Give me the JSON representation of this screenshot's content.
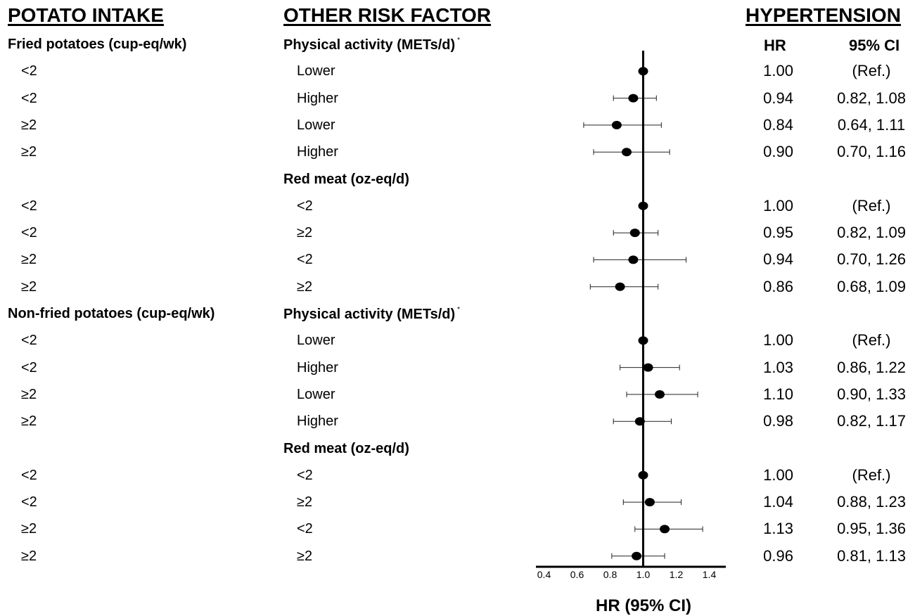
{
  "headers": {
    "potato_intake": "POTATO INTAKE",
    "other_risk_factor": "OTHER RISK FACTOR",
    "outcome": "HYPERTENSION",
    "hr": "HR",
    "ci": "95% CI",
    "asterisk": "*"
  },
  "xaxis_label": "HR (95% CI)",
  "chart_data": {
    "type": "forest",
    "xlabel": "HR (95% CI)",
    "xlim": [
      0.4,
      1.5
    ],
    "xticks": [
      "0.4",
      "0.6",
      "0.8",
      "1.0",
      "1.2",
      "1.4"
    ],
    "reference_line": 1.0,
    "rows": [
      {
        "kind": "section",
        "potato": "Fried potatoes (cup-eq/wk)",
        "factor": "Physical activity (METs/d)",
        "asterisk": true
      },
      {
        "kind": "data",
        "potato": "<2",
        "factor": "Lower",
        "hr": 1.0,
        "lo": 1.0,
        "hi": 1.0,
        "hr_text": "1.00",
        "ci_text": "(Ref.)"
      },
      {
        "kind": "data",
        "potato": "<2",
        "factor": "Higher",
        "hr": 0.94,
        "lo": 0.82,
        "hi": 1.08,
        "hr_text": "0.94",
        "ci_text": "0.82, 1.08"
      },
      {
        "kind": "data",
        "potato": "≥2",
        "factor": "Lower",
        "hr": 0.84,
        "lo": 0.64,
        "hi": 1.11,
        "hr_text": "0.84",
        "ci_text": "0.64, 1.11"
      },
      {
        "kind": "data",
        "potato": "≥2",
        "factor": "Higher",
        "hr": 0.9,
        "lo": 0.7,
        "hi": 1.16,
        "hr_text": "0.90",
        "ci_text": "0.70, 1.16"
      },
      {
        "kind": "section",
        "potato": "",
        "factor": "Red meat (oz-eq/d)",
        "asterisk": false
      },
      {
        "kind": "data",
        "potato": "<2",
        "factor": "<2",
        "hr": 1.0,
        "lo": 1.0,
        "hi": 1.0,
        "hr_text": "1.00",
        "ci_text": "(Ref.)"
      },
      {
        "kind": "data",
        "potato": "<2",
        "factor": "≥2",
        "hr": 0.95,
        "lo": 0.82,
        "hi": 1.09,
        "hr_text": "0.95",
        "ci_text": "0.82, 1.09"
      },
      {
        "kind": "data",
        "potato": "≥2",
        "factor": "<2",
        "hr": 0.94,
        "lo": 0.7,
        "hi": 1.26,
        "hr_text": "0.94",
        "ci_text": "0.70, 1.26"
      },
      {
        "kind": "data",
        "potato": "≥2",
        "factor": "≥2",
        "hr": 0.86,
        "lo": 0.68,
        "hi": 1.09,
        "hr_text": "0.86",
        "ci_text": "0.68, 1.09"
      },
      {
        "kind": "section",
        "potato": "Non-fried potatoes (cup-eq/wk)",
        "factor": "Physical activity (METs/d)",
        "asterisk": true
      },
      {
        "kind": "data",
        "potato": "<2",
        "factor": "Lower",
        "hr": 1.0,
        "lo": 1.0,
        "hi": 1.0,
        "hr_text": "1.00",
        "ci_text": "(Ref.)"
      },
      {
        "kind": "data",
        "potato": "<2",
        "factor": "Higher",
        "hr": 1.03,
        "lo": 0.86,
        "hi": 1.22,
        "hr_text": "1.03",
        "ci_text": "0.86, 1.22"
      },
      {
        "kind": "data",
        "potato": "≥2",
        "factor": "Lower",
        "hr": 1.1,
        "lo": 0.9,
        "hi": 1.33,
        "hr_text": "1.10",
        "ci_text": "0.90, 1.33"
      },
      {
        "kind": "data",
        "potato": "≥2",
        "factor": "Higher",
        "hr": 0.98,
        "lo": 0.82,
        "hi": 1.17,
        "hr_text": "0.98",
        "ci_text": "0.82, 1.17"
      },
      {
        "kind": "section",
        "potato": "",
        "factor": "Red meat (oz-eq/d)",
        "asterisk": false
      },
      {
        "kind": "data",
        "potato": "<2",
        "factor": "<2",
        "hr": 1.0,
        "lo": 1.0,
        "hi": 1.0,
        "hr_text": "1.00",
        "ci_text": "(Ref.)"
      },
      {
        "kind": "data",
        "potato": "<2",
        "factor": "≥2",
        "hr": 1.04,
        "lo": 0.88,
        "hi": 1.23,
        "hr_text": "1.04",
        "ci_text": "0.88, 1.23"
      },
      {
        "kind": "data",
        "potato": "≥2",
        "factor": "<2",
        "hr": 1.13,
        "lo": 0.95,
        "hi": 1.36,
        "hr_text": "1.13",
        "ci_text": "0.95, 1.36"
      },
      {
        "kind": "data",
        "potato": "≥2",
        "factor": "≥2",
        "hr": 0.96,
        "lo": 0.81,
        "hi": 1.13,
        "hr_text": "0.96",
        "ci_text": "0.81, 1.13"
      }
    ]
  }
}
